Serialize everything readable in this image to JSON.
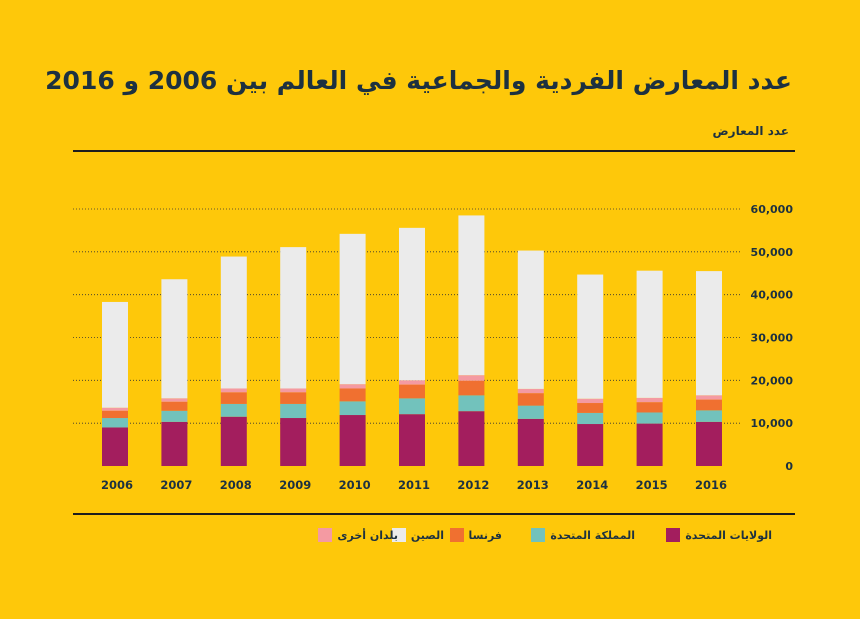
{
  "title": "عدد المعارض الفردية والجماعية في العالم بين 2006 و 2016",
  "colors": {
    "background": "#FEC80A",
    "usa": "#A31E5E",
    "uk": "#72C2BC",
    "france": "#F07030",
    "china": "#EBEBEB",
    "other": "#F49AA2"
  },
  "chart_data": {
    "type": "bar",
    "stacked": true,
    "ylabel": "عدد المعارض",
    "ylim": [
      0,
      60000
    ],
    "yticks": [
      "0",
      "10,000",
      "20,000",
      "30,000",
      "40,000",
      "50,000",
      "60,000"
    ],
    "grid": true,
    "legend_position": "bottom",
    "categories": [
      "2006",
      "2007",
      "2008",
      "2009",
      "2010",
      "2011",
      "2012",
      "2013",
      "2014",
      "2015",
      "2016"
    ],
    "series": [
      {
        "name": "الولايات المتحدة",
        "color_key": "usa",
        "values": [
          9000,
          10300,
          11500,
          11200,
          11900,
          12100,
          12800,
          11000,
          9800,
          9900,
          10300
        ]
      },
      {
        "name": "المملكة المتحدة",
        "color_key": "uk",
        "values": [
          2200,
          2600,
          3000,
          3300,
          3200,
          3700,
          3700,
          3100,
          2600,
          2600,
          2700
        ]
      },
      {
        "name": "فرنسا",
        "color_key": "france",
        "values": [
          1700,
          2100,
          2700,
          2700,
          3000,
          3200,
          3400,
          2900,
          2300,
          2400,
          2500
        ]
      },
      {
        "name": "بلدان أخرى",
        "color_key": "other",
        "values": [
          700,
          800,
          900,
          900,
          1000,
          1000,
          1300,
          1000,
          1000,
          1000,
          1000
        ]
      },
      {
        "name": "الصين",
        "color_key": "china",
        "values": [
          24700,
          27800,
          30800,
          33000,
          35100,
          35600,
          37300,
          32300,
          29000,
          29700,
          29000
        ]
      }
    ]
  },
  "legend": [
    {
      "label": "الولايات المتحدة",
      "color_key": "usa"
    },
    {
      "label": "المملكة المتحدة",
      "color_key": "uk"
    },
    {
      "label": "فرنسا",
      "color_key": "france"
    },
    {
      "label": "الصين",
      "color_key": "china"
    },
    {
      "label": "بلدان أخرى",
      "color_key": "other"
    }
  ]
}
